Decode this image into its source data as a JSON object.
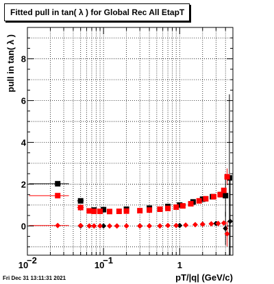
{
  "title": "Fitted pull in tan( λ ) for Global Rec All EtapT",
  "timestamp": "Fri Dec 31 13:11:31 2021",
  "chart_data": {
    "type": "scatter",
    "title": "Fitted pull in tan( λ ) for Global Rec All EtapT",
    "xlabel": "pT/|q| (GeV/c)",
    "ylabel": "pull in tan( λ )",
    "xscale": "log",
    "xlim": [
      0.01,
      5.0
    ],
    "ylim": [
      -1.4,
      9.5
    ],
    "x_ticks": [
      {
        "value": 0.01,
        "label": "10",
        "exp": "−2"
      },
      {
        "value": 0.1,
        "label": "10",
        "exp": "−1"
      },
      {
        "value": 1,
        "label": "1",
        "exp": ""
      }
    ],
    "y_ticks": [
      0,
      2,
      4,
      6,
      8
    ],
    "grid": true,
    "series": [
      {
        "color": "#000000",
        "marker": "square",
        "points": [
          {
            "x": 0.025,
            "y": 2.02,
            "xerr": [
              0.0145,
              0.0101
            ]
          },
          {
            "x": 0.05,
            "y": 1.2,
            "xerr": [
              0.005,
              0.005
            ]
          },
          {
            "x": 0.075,
            "y": 0.76
          },
          {
            "x": 0.1,
            "y": 0.78
          },
          {
            "x": 0.2,
            "y": 0.8
          },
          {
            "x": 0.4,
            "y": 0.85
          },
          {
            "x": 0.7,
            "y": 0.93
          },
          {
            "x": 1.0,
            "y": 1.0
          },
          {
            "x": 1.5,
            "y": 1.15
          },
          {
            "x": 2.0,
            "y": 1.28
          },
          {
            "x": 2.7,
            "y": 1.4
          },
          {
            "x": 3.5,
            "y": 1.5
          },
          {
            "x": 4.0,
            "y": 1.45,
            "yerr": 1.0
          },
          {
            "x": 4.5,
            "y": 2.3,
            "yerr": 4.0
          }
        ]
      },
      {
        "color": "#ff0000",
        "marker": "square",
        "points": [
          {
            "x": 0.025,
            "y": 1.45,
            "xerr": [
              0.0145,
              0.0101
            ]
          },
          {
            "x": 0.05,
            "y": 0.88,
            "xerr": [
              0.005,
              0.005
            ]
          },
          {
            "x": 0.065,
            "y": 0.72
          },
          {
            "x": 0.075,
            "y": 0.7
          },
          {
            "x": 0.09,
            "y": 0.7
          },
          {
            "x": 0.12,
            "y": 0.69
          },
          {
            "x": 0.16,
            "y": 0.7
          },
          {
            "x": 0.2,
            "y": 0.71
          },
          {
            "x": 0.3,
            "y": 0.73
          },
          {
            "x": 0.4,
            "y": 0.76
          },
          {
            "x": 0.55,
            "y": 0.8
          },
          {
            "x": 0.7,
            "y": 0.84
          },
          {
            "x": 0.9,
            "y": 0.9
          },
          {
            "x": 1.1,
            "y": 0.96
          },
          {
            "x": 1.4,
            "y": 1.06
          },
          {
            "x": 1.8,
            "y": 1.2
          },
          {
            "x": 2.2,
            "y": 1.3
          },
          {
            "x": 2.8,
            "y": 1.4
          },
          {
            "x": 3.4,
            "y": 1.5
          },
          {
            "x": 3.8,
            "y": 1.7
          },
          {
            "x": 4.2,
            "y": 2.35,
            "yerr": 0.4
          }
        ]
      },
      {
        "color": "#000000",
        "marker": "diamond",
        "points": [
          {
            "x": 0.05,
            "y": 0.0
          },
          {
            "x": 0.1,
            "y": 0.0
          },
          {
            "x": 0.3,
            "y": 0.0
          },
          {
            "x": 1.0,
            "y": 0.02
          },
          {
            "x": 2.0,
            "y": 0.08
          },
          {
            "x": 3.0,
            "y": 0.12
          },
          {
            "x": 4.0,
            "y": -0.12,
            "yerr": 0.8
          },
          {
            "x": 4.6,
            "y": 0.22,
            "yerr": 2.0
          }
        ]
      },
      {
        "color": "#ff0000",
        "marker": "diamond",
        "points": [
          {
            "x": 0.025,
            "y": 0.02,
            "xerr": [
              0.0145,
              0.0101
            ]
          },
          {
            "x": 0.05,
            "y": 0.02
          },
          {
            "x": 0.065,
            "y": 0.0
          },
          {
            "x": 0.075,
            "y": 0.0
          },
          {
            "x": 0.09,
            "y": 0.0
          },
          {
            "x": 0.12,
            "y": 0.0
          },
          {
            "x": 0.15,
            "y": 0.0
          },
          {
            "x": 0.2,
            "y": 0.0
          },
          {
            "x": 0.3,
            "y": 0.0
          },
          {
            "x": 0.4,
            "y": 0.0
          },
          {
            "x": 0.55,
            "y": 0.0
          },
          {
            "x": 0.7,
            "y": 0.02
          },
          {
            "x": 0.9,
            "y": 0.02
          },
          {
            "x": 1.2,
            "y": 0.04
          },
          {
            "x": 1.6,
            "y": 0.06
          },
          {
            "x": 2.0,
            "y": 0.08
          },
          {
            "x": 2.6,
            "y": 0.1
          },
          {
            "x": 3.2,
            "y": 0.12
          },
          {
            "x": 3.8,
            "y": 0.14
          },
          {
            "x": 4.2,
            "y": -0.38,
            "yerr": 0.6
          }
        ]
      }
    ]
  }
}
